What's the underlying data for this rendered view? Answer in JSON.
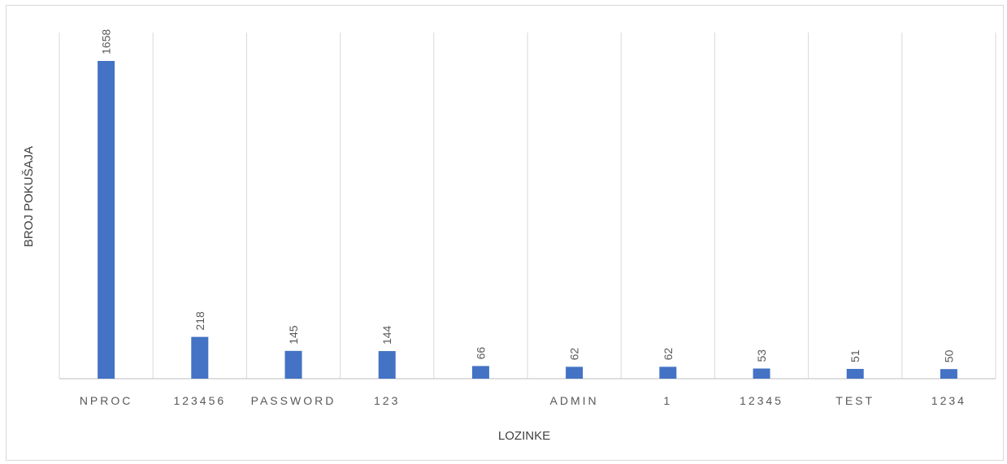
{
  "chart_data": {
    "type": "bar",
    "title": "",
    "xlabel": "LOZINKE",
    "ylabel": "BROJ POKUŠAJA",
    "categories": [
      "NPROC",
      "123456",
      "PASSWORD",
      "123",
      "",
      "ADMIN",
      "1",
      "12345",
      "TEST",
      "1234"
    ],
    "values": [
      1658,
      218,
      145,
      144,
      66,
      62,
      62,
      53,
      51,
      50
    ],
    "data_labels": [
      "1658",
      "218",
      "145",
      "144",
      "66",
      "62",
      "62",
      "53",
      "51",
      "50"
    ],
    "ylim": [
      0,
      1658
    ],
    "grid": "vertical",
    "legend": "none",
    "bar_color": "#4472c4",
    "grid_color": "#d9d9d9",
    "axis_color": "#bfbfbf"
  }
}
